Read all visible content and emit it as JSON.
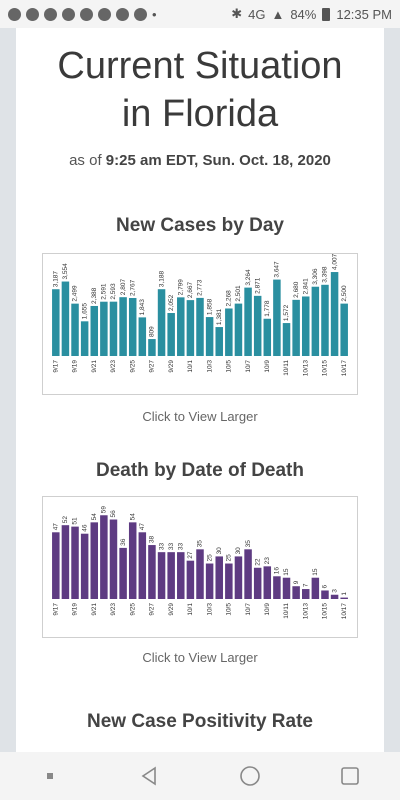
{
  "status_bar": {
    "battery": "84%",
    "time": "12:35 PM",
    "network": "4G"
  },
  "page": {
    "title_line1": "Current Situation",
    "title_line2": "in Florida",
    "as_of_prefix": "as of ",
    "as_of_time": "9:25 am EDT, Sun. Oct. 18, 2020",
    "click_label": "Click to View Larger",
    "next_section_title": "New Case Positivity Rate"
  },
  "chart_data": [
    {
      "type": "bar",
      "title": "New Cases by Day",
      "color": "#2a8fa0",
      "categories": [
        "9/17",
        "9/18",
        "9/19",
        "9/20",
        "9/21",
        "9/22",
        "9/23",
        "9/24",
        "9/25",
        "9/26",
        "9/27",
        "9/28",
        "9/29",
        "9/30",
        "10/1",
        "10/2",
        "10/3",
        "10/4",
        "10/5",
        "10/6",
        "10/7",
        "10/8",
        "10/9",
        "10/10",
        "10/11",
        "10/12",
        "10/13",
        "10/14",
        "10/15",
        "10/16",
        "10/17"
      ],
      "tick_labels": [
        "9/17",
        "9/19",
        "9/21",
        "9/23",
        "9/25",
        "9/27",
        "9/29",
        "10/1",
        "10/3",
        "10/5",
        "10/7",
        "10/9",
        "10/11",
        "10/13",
        "10/15",
        "10/17"
      ],
      "values": [
        3187,
        3554,
        2499,
        1655,
        2388,
        2591,
        2593,
        2807,
        2767,
        1843,
        809,
        3188,
        2052,
        2799,
        2667,
        2773,
        1858,
        1381,
        2268,
        2501,
        3264,
        2871,
        1778,
        3647,
        1572,
        2680,
        2841,
        3306,
        3398,
        4007,
        2500
      ],
      "ylim": [
        0,
        4200
      ]
    },
    {
      "type": "bar",
      "title": "Death by Date of Death",
      "color": "#5e3b82",
      "categories": [
        "9/17",
        "9/18",
        "9/19",
        "9/20",
        "9/21",
        "9/22",
        "9/23",
        "9/24",
        "9/25",
        "9/26",
        "9/27",
        "9/28",
        "9/29",
        "9/30",
        "10/1",
        "10/2",
        "10/3",
        "10/4",
        "10/5",
        "10/6",
        "10/7",
        "10/8",
        "10/9",
        "10/10",
        "10/11",
        "10/12",
        "10/13",
        "10/14",
        "10/15",
        "10/16",
        "10/17"
      ],
      "tick_labels": [
        "9/17",
        "9/19",
        "9/21",
        "9/23",
        "9/25",
        "9/27",
        "9/29",
        "10/1",
        "10/3",
        "10/5",
        "10/7",
        "10/9",
        "10/11",
        "10/13",
        "10/15",
        "10/17"
      ],
      "values": [
        47,
        52,
        51,
        46,
        54,
        59,
        56,
        36,
        54,
        47,
        38,
        33,
        33,
        33,
        27,
        35,
        25,
        30,
        25,
        30,
        35,
        22,
        23,
        16,
        15,
        9,
        7,
        15,
        6,
        3,
        1
      ],
      "ylim": [
        0,
        62
      ]
    }
  ]
}
